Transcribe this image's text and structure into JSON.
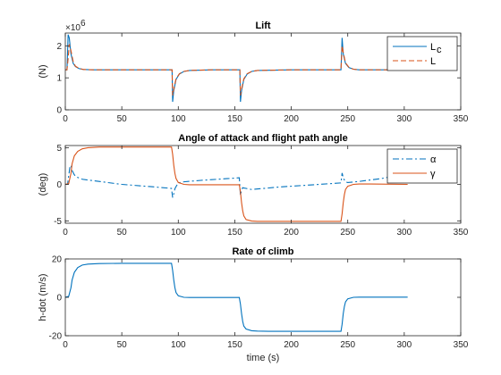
{
  "chart_data": [
    {
      "type": "line",
      "title": "Lift",
      "xlabel": "",
      "ylabel": "(N)",
      "xlim": [
        0,
        350
      ],
      "ylim": [
        0,
        2.4
      ],
      "xticks": [
        "0",
        "50",
        "100",
        "150",
        "200",
        "250",
        "300",
        "350"
      ],
      "yticks": [
        "0",
        "1",
        "2"
      ],
      "exponent_label": "×10",
      "exponent_value": "6",
      "legend_position": "top-right",
      "series": [
        {
          "name": "L_c",
          "legend_main": "L",
          "legend_sub": "c",
          "color": "#0072BD",
          "style": "solid",
          "x": [
            0,
            1.5,
            2.5,
            3.5,
            5,
            7,
            9,
            12,
            16,
            25,
            40,
            60,
            80,
            92,
            94.5,
            95,
            96,
            98,
            101,
            105,
            110,
            130,
            150,
            153,
            154.5,
            155,
            156,
            158,
            161,
            165,
            170,
            200,
            230,
            242,
            244,
            245,
            246,
            248,
            251,
            255,
            260,
            280,
            304
          ],
          "y": [
            1.25,
            1.25,
            2.35,
            2.25,
            1.75,
            1.45,
            1.35,
            1.29,
            1.26,
            1.25,
            1.25,
            1.25,
            1.25,
            1.25,
            1.25,
            0.25,
            0.6,
            0.95,
            1.12,
            1.2,
            1.23,
            1.25,
            1.25,
            1.25,
            1.25,
            0.25,
            0.6,
            0.95,
            1.12,
            1.2,
            1.23,
            1.25,
            1.25,
            1.25,
            1.25,
            2.25,
            1.75,
            1.45,
            1.32,
            1.27,
            1.25,
            1.25,
            1.25
          ]
        },
        {
          "name": "L",
          "legend_main": "L",
          "legend_sub": "",
          "color": "#D95319",
          "style": "dashed",
          "x": [
            0,
            1.5,
            2.5,
            3.5,
            5,
            7,
            9,
            12,
            16,
            25,
            40,
            60,
            80,
            92,
            94.5,
            95,
            96,
            98,
            101,
            105,
            110,
            130,
            150,
            153,
            154.5,
            155,
            156,
            158,
            161,
            165,
            170,
            200,
            230,
            242,
            244,
            245,
            246,
            248,
            251,
            255,
            260,
            280,
            304
          ],
          "y": [
            1.25,
            1.25,
            1.6,
            2.05,
            1.85,
            1.5,
            1.36,
            1.3,
            1.26,
            1.25,
            1.25,
            1.25,
            1.25,
            1.25,
            1.25,
            0.45,
            0.65,
            0.97,
            1.13,
            1.2,
            1.23,
            1.25,
            1.25,
            1.25,
            1.25,
            0.45,
            0.65,
            0.97,
            1.13,
            1.2,
            1.23,
            1.25,
            1.25,
            1.25,
            1.25,
            2.0,
            1.8,
            1.47,
            1.33,
            1.27,
            1.25,
            1.25,
            1.25
          ]
        }
      ]
    },
    {
      "type": "line",
      "title": "Angle of attack and flight path angle",
      "xlabel": "",
      "ylabel": "(deg)",
      "xlim": [
        0,
        350
      ],
      "ylim": [
        -5.3,
        5.3
      ],
      "xticks": [
        "0",
        "50",
        "100",
        "150",
        "200",
        "250",
        "300",
        "350"
      ],
      "yticks": [
        "-5",
        "0",
        "5"
      ],
      "legend_position": "top-right",
      "series": [
        {
          "name": "α",
          "legend_main": "α",
          "color": "#0072BD",
          "style": "dashdot",
          "x": [
            0,
            2,
            4,
            5,
            6,
            8,
            10,
            15,
            25,
            50,
            75,
            94,
            95,
            96,
            97,
            98,
            100,
            105,
            120,
            140,
            154,
            155,
            156,
            157,
            158,
            160,
            165,
            190,
            220,
            244,
            245,
            246,
            247,
            248,
            250,
            260,
            280,
            303
          ],
          "y": [
            0,
            0,
            2.3,
            2.6,
            1.9,
            1.3,
            1.0,
            0.7,
            0.5,
            0.0,
            -0.3,
            -0.55,
            -1.8,
            -1.3,
            -0.6,
            -0.3,
            0.2,
            0.35,
            0.55,
            0.75,
            0.9,
            -1.5,
            -0.8,
            -0.45,
            -0.5,
            -0.55,
            -0.7,
            -0.35,
            -0.05,
            0.2,
            1.55,
            0.9,
            0.6,
            0.35,
            0.25,
            0.4,
            0.8,
            1.5
          ]
        },
        {
          "name": "γ",
          "legend_main": "γ",
          "color": "#D95319",
          "style": "solid",
          "x": [
            0,
            3,
            5,
            6,
            8,
            11,
            15,
            20,
            30,
            50,
            94,
            95,
            96,
            97,
            98,
            100,
            105,
            110,
            120,
            154,
            155,
            156,
            157,
            158,
            160,
            165,
            170,
            180,
            244,
            245,
            246,
            247,
            248,
            250,
            255,
            260,
            270,
            303
          ],
          "y": [
            0,
            0.1,
            1.5,
            2.8,
            3.9,
            4.5,
            4.85,
            5.0,
            5.1,
            5.1,
            5.1,
            4.1,
            2.6,
            1.5,
            0.8,
            0.25,
            0.0,
            -0.05,
            -0.05,
            -0.05,
            -1.0,
            -2.5,
            -3.6,
            -4.3,
            -4.8,
            -5.0,
            -5.05,
            -5.05,
            -5.05,
            -4.0,
            -2.5,
            -1.4,
            -0.7,
            -0.25,
            0.0,
            0.05,
            0.05,
            0.0
          ]
        }
      ]
    },
    {
      "type": "line",
      "title": "Rate of climb",
      "xlabel": "time (s)",
      "ylabel": "h-dot (m/s)",
      "xlim": [
        0,
        350
      ],
      "ylim": [
        -20,
        20
      ],
      "xticks": [
        "0",
        "50",
        "100",
        "150",
        "200",
        "250",
        "300",
        "350"
      ],
      "yticks": [
        "-20",
        "0",
        "20"
      ],
      "series": [
        {
          "name": "",
          "color": "#0072BD",
          "style": "solid",
          "x": [
            0,
            3,
            5,
            6,
            8,
            11,
            15,
            20,
            30,
            50,
            94,
            95,
            96,
            97,
            98,
            100,
            105,
            110,
            120,
            154,
            155,
            156,
            157,
            158,
            160,
            165,
            170,
            180,
            244,
            245,
            246,
            247,
            248,
            250,
            255,
            260,
            270,
            303
          ],
          "y": [
            0,
            0.5,
            5,
            9,
            13,
            15.5,
            16.8,
            17.3,
            17.6,
            17.7,
            17.7,
            14,
            9,
            5,
            2.5,
            0.8,
            0.0,
            -0.1,
            -0.1,
            -0.1,
            -3.5,
            -8.5,
            -12.5,
            -15,
            -16.5,
            -17.4,
            -17.6,
            -17.7,
            -17.7,
            -14,
            -8.5,
            -4.8,
            -2.4,
            -0.8,
            0.0,
            0.1,
            0.1,
            0.1
          ]
        }
      ]
    }
  ]
}
